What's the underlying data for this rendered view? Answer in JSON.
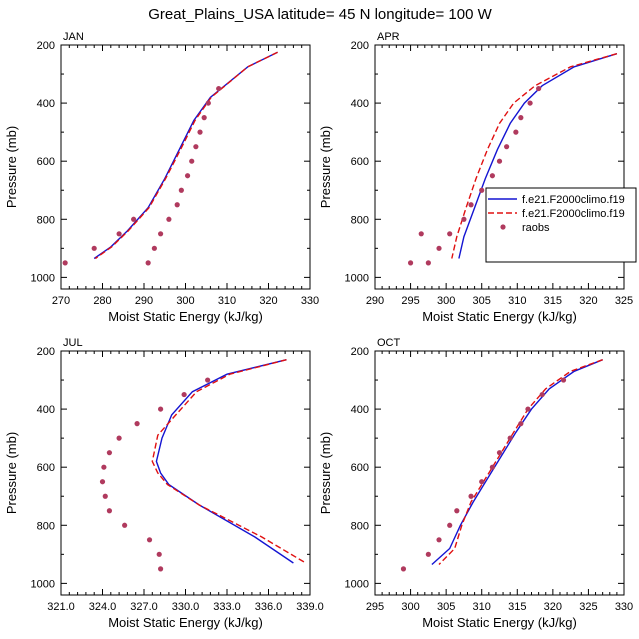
{
  "title": "Great_Plains_USA  latitude= 45 N longitude= 100 W",
  "colors": {
    "model1": "#1414d2",
    "model2": "#e01010",
    "raobs": "#b03a5e"
  },
  "legend": {
    "entries": [
      "f.e21.F2000climo.f19",
      "f.e21.F2000climo.f19",
      "raobs"
    ]
  },
  "chart_data": [
    {
      "type": "line",
      "panel_label": "JAN",
      "xlabel": "Moist Static Energy (kJ/kg)",
      "ylabel": "Pressure (mb)",
      "xlim": [
        270,
        330
      ],
      "ylim": [
        1040,
        200
      ],
      "xticks": [
        270,
        280,
        290,
        300,
        310,
        320,
        330
      ],
      "xtick_labels": [
        "270",
        "280",
        "290",
        "300",
        "310",
        "320",
        "330"
      ],
      "yticks": [
        200,
        400,
        600,
        800,
        1000
      ],
      "ytick_labels": [
        "200",
        "400",
        "600",
        "800",
        "1000"
      ],
      "series": [
        {
          "name": "f.e21.F2000climo.f19",
          "x": [
            322.2,
            315.0,
            306.0,
            302.0,
            298.5,
            295.0,
            291.0,
            286.0,
            282.0,
            278.0
          ],
          "y": [
            225,
            275,
            380,
            460,
            560,
            660,
            760,
            840,
            895,
            935
          ]
        },
        {
          "name": "f.e21.F2000climo.f19",
          "x": [
            322.2,
            315.0,
            306.2,
            302.3,
            298.8,
            295.2,
            291.2,
            286.2,
            282.2,
            278.3
          ],
          "y": [
            225,
            275,
            380,
            460,
            560,
            660,
            760,
            840,
            895,
            935
          ]
        },
        {
          "name": "raobs",
          "x": [
            308.0,
            305.5,
            304.5,
            303.5,
            302.5,
            301.5,
            300.5,
            299.0,
            298.0,
            296.0,
            294.0,
            292.5,
            291.0,
            287.5,
            284.0,
            278.0,
            271.0
          ],
          "y": [
            350,
            400,
            450,
            500,
            550,
            600,
            650,
            700,
            750,
            800,
            850,
            900,
            950,
            800,
            850,
            900,
            950
          ]
        }
      ]
    },
    {
      "type": "line",
      "panel_label": "APR",
      "xlabel": "Moist Static Energy (kJ/kg)",
      "ylabel": "Pressure (mb)",
      "xlim": [
        290,
        325
      ],
      "ylim": [
        1040,
        200
      ],
      "xticks": [
        290,
        295,
        300,
        305,
        310,
        315,
        320,
        325
      ],
      "xtick_labels": [
        "290",
        "295",
        "300",
        "305",
        "310",
        "315",
        "320",
        "325"
      ],
      "yticks": [
        200,
        400,
        600,
        800,
        1000
      ],
      "ytick_labels": [
        "200",
        "400",
        "600",
        "800",
        "1000"
      ],
      "series": [
        {
          "name": "f.e21.F2000climo.f19",
          "x": [
            324.0,
            318.0,
            313.5,
            311.0,
            309.0,
            307.2,
            305.5,
            304.0,
            302.5,
            301.8
          ],
          "y": [
            230,
            275,
            340,
            400,
            470,
            560,
            660,
            760,
            860,
            935
          ]
        },
        {
          "name": "f.e21.F2000climo.f19",
          "x": [
            324.0,
            317.5,
            312.5,
            309.5,
            307.5,
            305.8,
            304.2,
            302.8,
            301.5,
            300.8
          ],
          "y": [
            230,
            275,
            340,
            400,
            470,
            560,
            660,
            760,
            860,
            935
          ]
        },
        {
          "name": "raobs",
          "x": [
            313.0,
            311.8,
            310.5,
            309.8,
            308.5,
            307.5,
            306.5,
            305.0,
            303.5,
            302.5,
            300.5,
            299.0,
            297.5,
            296.5,
            295.0
          ],
          "y": [
            350,
            400,
            450,
            500,
            550,
            600,
            650,
            700,
            750,
            800,
            850,
            900,
            950,
            850,
            950
          ]
        }
      ]
    },
    {
      "type": "line",
      "panel_label": "JUL",
      "xlabel": "Moist Static Energy (kJ/kg)",
      "ylabel": "Pressure (mb)",
      "xlim": [
        321,
        339
      ],
      "ylim": [
        1040,
        200
      ],
      "xticks": [
        321,
        324,
        327,
        330,
        333,
        336,
        339
      ],
      "xtick_labels": [
        "321.0",
        "324.0",
        "327.0",
        "330.0",
        "333.0",
        "336.0",
        "339.0"
      ],
      "yticks": [
        200,
        400,
        600,
        800,
        1000
      ],
      "ytick_labels": [
        "200",
        "400",
        "600",
        "800",
        "1000"
      ],
      "series": [
        {
          "name": "f.e21.F2000climo.f19",
          "x": [
            337.3,
            333.0,
            330.5,
            329.0,
            328.3,
            327.9,
            328.2,
            328.8,
            331.0,
            335.0,
            337.8
          ],
          "y": [
            230,
            280,
            340,
            420,
            500,
            580,
            620,
            660,
            730,
            840,
            930
          ]
        },
        {
          "name": "f.e21.F2000climo.f19",
          "x": [
            337.3,
            333.2,
            330.8,
            329.3,
            328.0,
            327.6,
            328.0,
            328.7,
            331.0,
            335.5,
            338.7
          ],
          "y": [
            230,
            280,
            340,
            420,
            490,
            580,
            620,
            660,
            730,
            840,
            930
          ]
        },
        {
          "name": "raobs",
          "x": [
            331.6,
            329.9,
            328.2,
            326.5,
            325.2,
            324.5,
            324.1,
            324.0,
            324.2,
            324.5,
            325.6,
            327.4,
            328.1,
            328.2
          ],
          "y": [
            300,
            350,
            400,
            450,
            500,
            550,
            600,
            650,
            700,
            750,
            800,
            850,
            900,
            950
          ]
        }
      ]
    },
    {
      "type": "line",
      "panel_label": "OCT",
      "xlabel": "Moist Static Energy (kJ/kg)",
      "ylabel": "Pressure (mb)",
      "xlim": [
        295,
        330
      ],
      "ylim": [
        1040,
        200
      ],
      "xticks": [
        295,
        300,
        305,
        310,
        315,
        320,
        325,
        330
      ],
      "xtick_labels": [
        "295",
        "300",
        "305",
        "310",
        "315",
        "320",
        "325",
        "330"
      ],
      "yticks": [
        200,
        400,
        600,
        800,
        1000
      ],
      "ytick_labels": [
        "200",
        "400",
        "600",
        "800",
        "1000"
      ],
      "series": [
        {
          "name": "f.e21.F2000climo.f19",
          "x": [
            327.0,
            323.0,
            319.5,
            317.0,
            314.8,
            312.8,
            310.8,
            308.8,
            307.0,
            305.5,
            303.0
          ],
          "y": [
            230,
            270,
            330,
            400,
            480,
            560,
            640,
            720,
            800,
            880,
            935
          ]
        },
        {
          "name": "f.e21.F2000climo.f19",
          "x": [
            327.0,
            322.5,
            319.0,
            316.5,
            314.5,
            312.5,
            310.5,
            308.5,
            307.2,
            306.2,
            304.0
          ],
          "y": [
            230,
            270,
            330,
            400,
            480,
            560,
            640,
            720,
            800,
            880,
            935
          ]
        },
        {
          "name": "raobs",
          "x": [
            321.5,
            318.5,
            316.5,
            315.5,
            314.0,
            312.5,
            311.5,
            310.0,
            308.5,
            306.5,
            305.5,
            304.0,
            302.5,
            299.0
          ],
          "y": [
            300,
            350,
            400,
            450,
            500,
            550,
            600,
            650,
            700,
            750,
            800,
            850,
            900,
            950
          ]
        }
      ]
    }
  ]
}
